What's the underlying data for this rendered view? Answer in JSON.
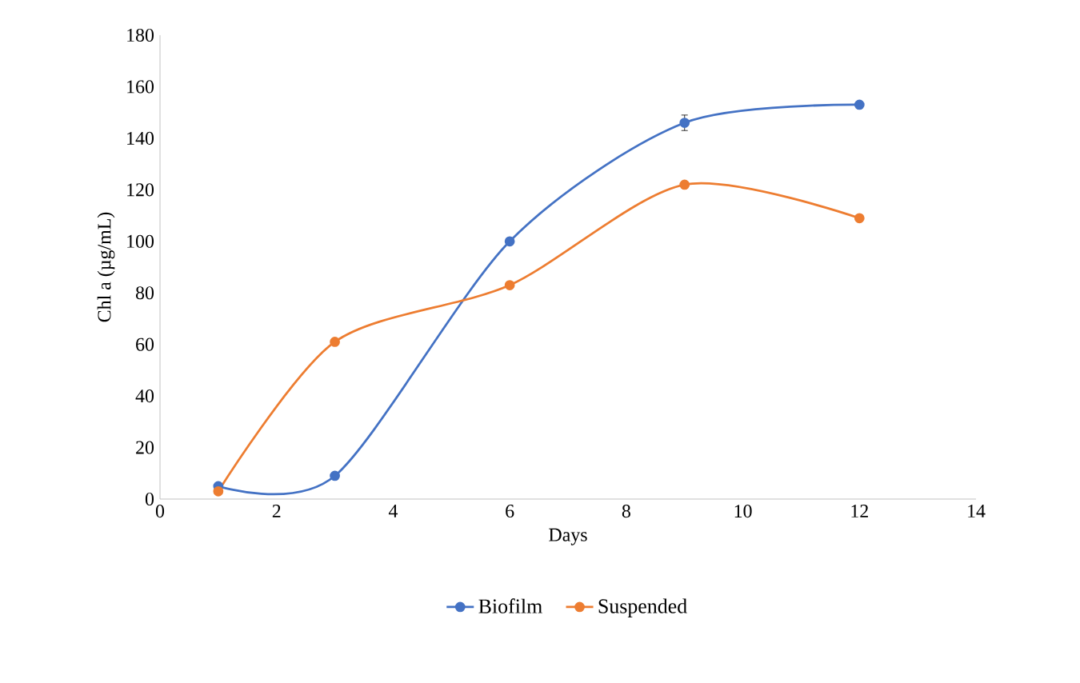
{
  "chart_data": {
    "type": "line",
    "xlabel": "Days",
    "ylabel": "Chl a (µg/mL)",
    "x": [
      1,
      3,
      6,
      9,
      12
    ],
    "series": [
      {
        "name": "Biofilm",
        "color": "#4472c4",
        "values": [
          5,
          9,
          100,
          146,
          153
        ],
        "errors": [
          null,
          null,
          null,
          3,
          null
        ]
      },
      {
        "name": "Suspended",
        "color": "#ed7d31",
        "values": [
          3,
          61,
          83,
          122,
          109
        ]
      }
    ],
    "xlim": [
      0,
      14
    ],
    "xticks": [
      0,
      2,
      4,
      6,
      8,
      10,
      12,
      14
    ],
    "ylim": [
      0,
      180
    ],
    "yticks": [
      0,
      20,
      40,
      60,
      80,
      100,
      120,
      140,
      160,
      180
    ],
    "grid": false,
    "legend": "bottom",
    "marker": "circle",
    "line_style": "solid"
  }
}
